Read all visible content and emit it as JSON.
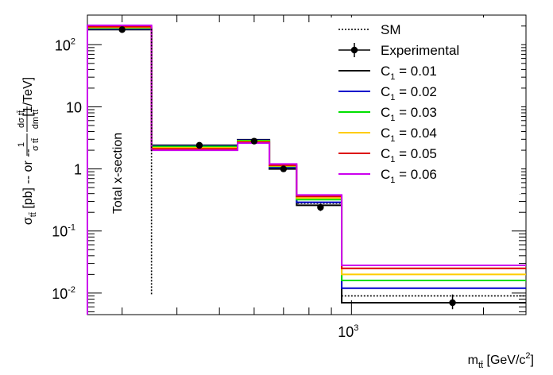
{
  "chart_data": {
    "type": "step",
    "title": "",
    "xlabel": "m_tt̄ [GeV/c²]",
    "ylabel": "σ_tt̄ [pb] -- or -- (1/σ_tt̄) dσ_tt̄/dm_tt̄ [1/TeV]",
    "x_scale": "log",
    "y_scale": "log",
    "xlim": [
      250,
      2500
    ],
    "ylim": [
      0.0045,
      300
    ],
    "x_tick_labels": [
      {
        "value": 1000,
        "mant": "10",
        "exp": "3"
      }
    ],
    "y_tick_labels": [
      {
        "value": 100,
        "mant": "10",
        "exp": "2"
      },
      {
        "value": 10,
        "mant": "10",
        "exp": ""
      },
      {
        "value": 1,
        "mant": "1",
        "exp": ""
      },
      {
        "value": 0.1,
        "mant": "10",
        "exp": "-1"
      },
      {
        "value": 0.01,
        "mant": "10",
        "exp": "-2"
      }
    ],
    "bin_edges": [
      250,
      350,
      550,
      650,
      750,
      950,
      2500
    ],
    "annotation": "Total x-section",
    "legend": {
      "placement": "top-right",
      "entries": [
        {
          "key": "sm",
          "text": "SM",
          "style": "dotted",
          "color": "#000000"
        },
        {
          "key": "exp",
          "text": "Experimental",
          "style": "marker",
          "color": "#000000"
        },
        {
          "key": "c1",
          "prefix": "C",
          "sub": "1",
          "text": " = 0.01",
          "color": "#000000"
        },
        {
          "key": "c2",
          "prefix": "C",
          "sub": "1",
          "text": " = 0.02",
          "color": "#0000cc"
        },
        {
          "key": "c3",
          "prefix": "C",
          "sub": "1",
          "text": " = 0.03",
          "color": "#00e000"
        },
        {
          "key": "c4",
          "prefix": "C",
          "sub": "1",
          "text": " = 0.04",
          "color": "#ffcc00"
        },
        {
          "key": "c5",
          "prefix": "C",
          "sub": "1",
          "text": " = 0.05",
          "color": "#dd0000"
        },
        {
          "key": "c6",
          "prefix": "C",
          "sub": "1",
          "text": " = 0.06",
          "color": "#cc00ee"
        }
      ]
    },
    "series": [
      {
        "key": "sm",
        "name": "SM",
        "color": "#000000",
        "dashed": true,
        "values": [
          180,
          2.2,
          2.8,
          1.0,
          0.28,
          0.009
        ]
      },
      {
        "key": "c1",
        "name": "C1 = 0.01",
        "color": "#000000",
        "values": [
          175,
          2.4,
          2.95,
          1.0,
          0.26,
          0.007
        ]
      },
      {
        "key": "c2",
        "name": "C1 = 0.02",
        "color": "#0000cc",
        "values": [
          180,
          2.35,
          2.9,
          1.05,
          0.29,
          0.012
        ]
      },
      {
        "key": "c3",
        "name": "C1 = 0.03",
        "color": "#00e000",
        "values": [
          185,
          2.3,
          2.85,
          1.1,
          0.32,
          0.016
        ]
      },
      {
        "key": "c4",
        "name": "C1 = 0.04",
        "color": "#ffcc00",
        "values": [
          190,
          2.2,
          2.75,
          1.12,
          0.34,
          0.02
        ]
      },
      {
        "key": "c5",
        "name": "C1 = 0.05",
        "color": "#dd0000",
        "values": [
          195,
          2.1,
          2.7,
          1.15,
          0.36,
          0.025
        ]
      },
      {
        "key": "c6",
        "name": "C1 = 0.06",
        "color": "#cc00ee",
        "values": [
          205,
          2.0,
          2.6,
          1.2,
          0.38,
          0.028
        ]
      }
    ],
    "sm_total_line": {
      "x": 350,
      "y_from": 0.0095,
      "y_to": 180
    },
    "experimental": [
      {
        "x": 300,
        "y": 175,
        "err_lo": 160,
        "err_hi": 190
      },
      {
        "x": 450,
        "y": 2.4,
        "err_lo": 2.2,
        "err_hi": 2.6
      },
      {
        "x": 600,
        "y": 2.8,
        "err_lo": 2.55,
        "err_hi": 3.05
      },
      {
        "x": 700,
        "y": 1.0,
        "err_lo": 0.92,
        "err_hi": 1.1
      },
      {
        "x": 850,
        "y": 0.24,
        "err_lo": 0.21,
        "err_hi": 0.27
      },
      {
        "x": 1700,
        "y": 0.007,
        "err_lo": 0.0055,
        "err_hi": 0.0095
      }
    ]
  }
}
